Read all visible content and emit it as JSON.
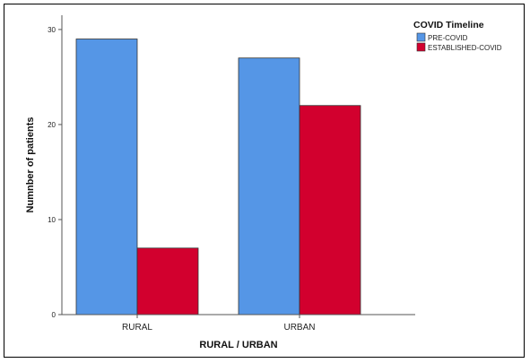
{
  "chart_data": {
    "type": "bar",
    "categories": [
      "RURAL",
      "URBAN"
    ],
    "series": [
      {
        "name": "PRE-COVID",
        "values": [
          29,
          27
        ],
        "color": "#5596e6"
      },
      {
        "name": "ESTABLISHED-COVID",
        "values": [
          7,
          22
        ],
        "color": "#d2002e"
      }
    ],
    "xlabel": "RURAL / URBAN",
    "ylabel": "Numnber of patients",
    "yticks": [
      0,
      10,
      20,
      30
    ],
    "ylim": [
      0,
      31.5
    ],
    "legend": {
      "title": "COVID Timeline",
      "position": "top-right"
    },
    "grid": false
  }
}
